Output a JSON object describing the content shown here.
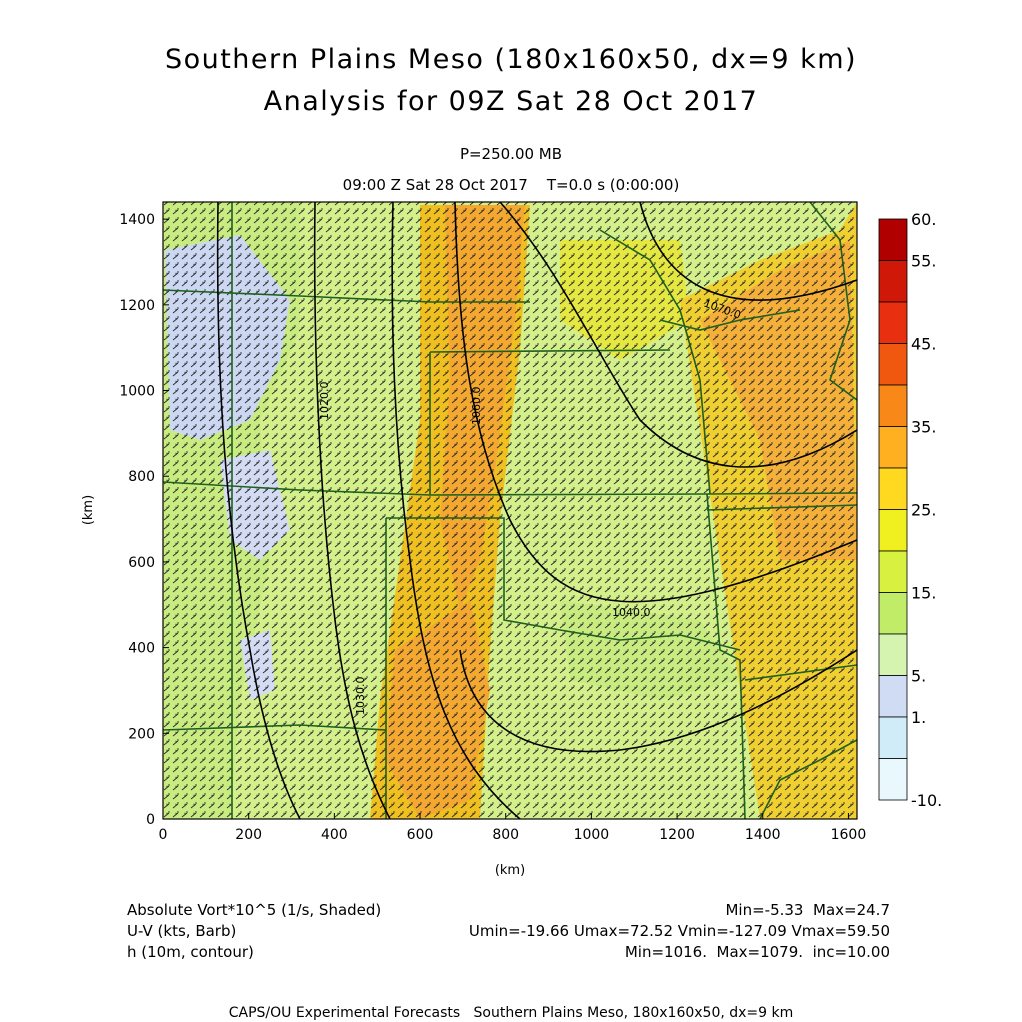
{
  "header": {
    "title_line1": "Southern Plains Meso (180x160x50, dx=9 km)",
    "title_line2": "Analysis for 09Z Sat 28 Oct 2017",
    "level": "P=250.00 MB",
    "time": "09:00 Z Sat 28 Oct 2017    T=0.0 s (0:00:00)"
  },
  "axes": {
    "x_label": "(km)",
    "y_label": "(km)",
    "x_ticks": [
      "0",
      "200",
      "400",
      "600",
      "800",
      "1000",
      "1200",
      "1400",
      "1600"
    ],
    "y_ticks": [
      "0",
      "200",
      "400",
      "600",
      "800",
      "1000",
      "1200",
      "1400"
    ],
    "x_range": [
      0,
      1620
    ],
    "y_range": [
      0,
      1440
    ]
  },
  "colorbar": {
    "labels": [
      "60.",
      "55.",
      "45.",
      "35.",
      "25.",
      "15.",
      "5.",
      "1.",
      "-10."
    ],
    "colors": [
      "#b00000",
      "#d01808",
      "#e83010",
      "#f05810",
      "#f88818",
      "#ffb020",
      "#ffd820",
      "#f0f020",
      "#d8f040",
      "#c0ec68",
      "#d4f4b0",
      "#d0dcf4",
      "#d0ecf8",
      "#e8f8fc"
    ]
  },
  "contour_labels": [
    "1020.0",
    "1030.0",
    "1060.0",
    "1070.0",
    "1040.0",
    "1050.0"
  ],
  "footer": {
    "vort_label": "Absolute Vort*10^5 (1/s, Shaded)",
    "vort_stats": "Min=-5.33  Max=24.7",
    "wind_label": "U-V (kts, Barb)",
    "wind_stats": "Umin=-19.66 Umax=72.52 Vmin=-127.09 Vmax=59.50",
    "height_label": "h (10m, contour)",
    "height_stats": "Min=1016.  Max=1079.  inc=10.00",
    "credit": "CAPS/OU Experimental Forecasts   Southern Plains Meso, 180x160x50, dx=9 km"
  }
}
